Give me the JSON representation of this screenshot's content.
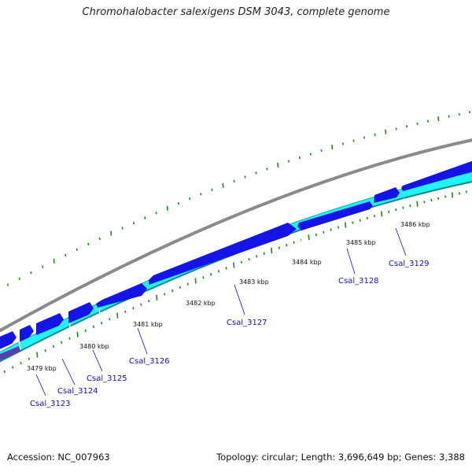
{
  "title": "Chromohalobacter salexigens DSM 3043, complete genome",
  "footer": {
    "accession": "Accession: NC_007963",
    "summary": "Topology: circular; Length: 3,696,649 bp; Genes: 3,388"
  },
  "colors": {
    "backbone": "#8a8a8a",
    "cds_forward": "#1414e6",
    "cds_reverse": "#22f2f2",
    "cds_reverse_edge": "#11a8a8",
    "tick": "#1a8a1a",
    "gene_label": "#1010b0",
    "gene_purple": "#5a3cb4"
  },
  "scale_labels": [
    "3479 kbp",
    "3480 kbp",
    "3481 kbp",
    "3482 kbp",
    "3483 kbp",
    "3484 kbp",
    "3485 kbp",
    "3486 kbp"
  ],
  "gene_labels": [
    "Csal_3123",
    "Csal_3124",
    "Csal_3125",
    "Csal_3126",
    "Csal_3127",
    "Csal_3128",
    "Csal_3129"
  ]
}
